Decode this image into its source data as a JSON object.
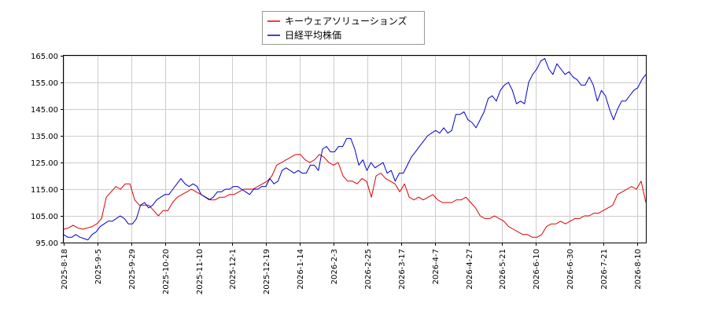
{
  "chart_data": {
    "type": "line",
    "grid": true,
    "legend_placement": "top-center",
    "ylim": [
      95,
      165
    ],
    "y_ticks": [
      "95.00",
      "105.00",
      "115.00",
      "125.00",
      "135.00",
      "145.00",
      "155.00",
      "165.00"
    ],
    "x_ticks": [
      "2025-8-18",
      "2025-9-5",
      "2025-9-29",
      "2025-10-20",
      "2025-11-10",
      "2025-12-1",
      "2025-12-19",
      "2026-1-14",
      "2026-2-3",
      "2026-2-25",
      "2026-3-17",
      "2026-4-7",
      "2026-4-27",
      "2026-5-21",
      "2026-6-10",
      "2026-6-30",
      "2026-7-21",
      "2026-8-10"
    ],
    "series": [
      {
        "name": "キーウェアソリューションズ",
        "color": "#dd0000",
        "values": [
          100,
          100.5,
          101.5,
          100.5,
          100,
          100.5,
          101,
          102,
          104,
          112,
          114,
          116,
          115,
          117,
          117,
          111,
          109,
          109,
          109,
          107,
          105,
          107,
          107,
          110,
          112,
          113,
          114,
          115,
          114,
          113,
          112,
          111,
          111,
          112,
          112,
          113,
          113,
          114,
          115,
          115,
          115,
          116,
          117,
          118,
          120,
          124,
          125,
          126,
          127,
          128,
          128,
          126,
          125,
          126,
          128,
          127,
          125,
          124,
          125,
          120,
          118,
          118,
          117,
          119,
          118,
          112,
          120,
          121,
          119,
          118,
          117,
          114,
          117,
          112,
          111,
          112,
          111,
          112,
          113,
          111,
          110,
          110,
          110,
          111,
          111,
          112,
          110,
          108,
          105,
          104,
          104,
          105,
          104,
          103,
          101,
          100,
          99,
          98,
          98,
          97,
          97,
          98,
          101,
          102,
          102,
          103,
          102,
          103,
          104,
          104,
          105,
          105,
          106,
          106,
          107,
          108,
          109,
          113,
          114,
          115,
          116,
          115,
          118,
          110
        ]
      },
      {
        "name": "日経平均株価",
        "color": "#0000cc",
        "values": [
          98,
          97,
          97,
          98,
          97,
          96.5,
          96,
          98,
          99,
          101,
          102,
          103,
          103,
          104,
          105,
          104,
          102,
          102,
          104,
          109,
          110,
          108,
          109,
          111,
          112,
          113,
          113,
          115,
          117,
          119,
          117,
          116,
          117,
          116,
          113,
          112,
          111,
          112,
          114,
          114,
          115,
          115,
          116,
          116,
          115,
          114,
          113,
          115,
          115,
          116,
          116,
          119,
          117,
          118,
          122,
          123,
          122,
          121,
          122,
          121,
          121,
          124,
          124,
          122,
          130,
          131,
          129,
          129,
          131,
          131,
          134,
          134,
          130,
          124,
          126,
          122,
          125,
          123,
          124,
          125,
          121,
          122,
          118,
          121,
          121,
          124,
          127,
          129,
          131,
          133,
          135,
          136,
          137,
          136,
          138,
          136,
          137,
          143,
          143,
          144,
          141,
          140,
          138,
          141,
          144,
          149,
          150,
          148,
          152,
          154,
          155,
          152,
          147,
          148,
          147,
          155,
          158,
          160,
          163,
          164,
          160,
          158,
          162,
          160,
          158,
          159,
          157,
          156,
          154,
          154,
          157,
          154,
          148,
          152,
          150,
          145,
          141,
          145,
          148,
          148,
          150,
          152,
          153,
          156,
          158
        ]
      }
    ]
  }
}
